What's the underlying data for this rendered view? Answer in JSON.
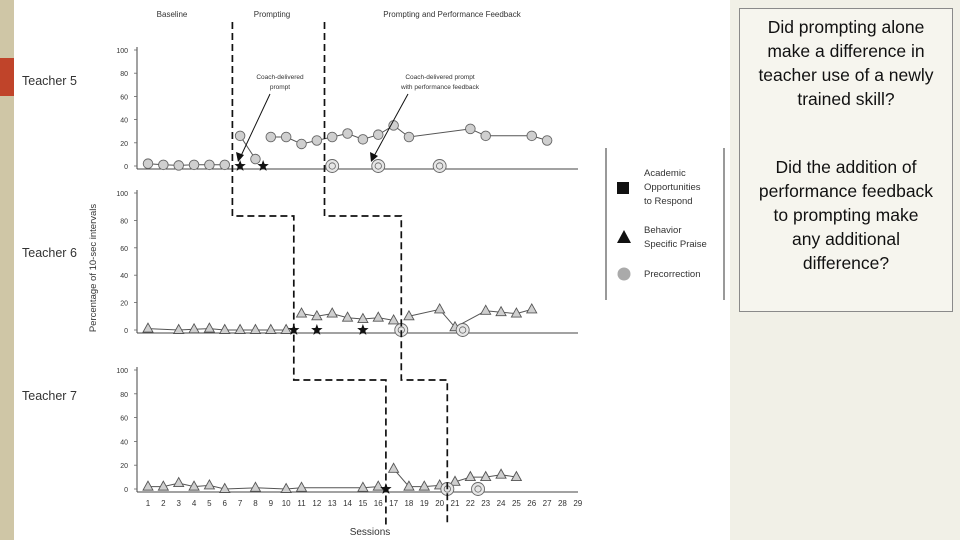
{
  "phases": [
    "Baseline",
    "Prompting",
    "Prompting and Performance Feedback"
  ],
  "annotations": {
    "coach_prompt": [
      "Coach-delivered",
      "prompt"
    ],
    "coach_prompt_feedback": [
      "Coach-delivered prompt",
      "with performance feedback"
    ]
  },
  "legend": {
    "items": [
      {
        "label": [
          "Academic",
          "Opportunities",
          "to Respond"
        ],
        "shape": "square"
      },
      {
        "label": [
          "Behavior",
          "Specific Praise"
        ],
        "shape": "triangle"
      },
      {
        "label": [
          "Precorrection"
        ],
        "shape": "circle"
      }
    ]
  },
  "questions": {
    "q1": [
      "Did prompting alone",
      "make a difference in",
      "teacher use of a newly",
      "trained skill?"
    ],
    "q2": [
      "Did the addition of",
      "performance feedback",
      "to prompting make",
      "any additional",
      "difference?"
    ]
  },
  "chart_data": {
    "type": "line",
    "xlabel": "Sessions",
    "ylabel": "Percentage of 10-sec intervals",
    "x_ticks": [
      "1",
      "2",
      "3",
      "4",
      "5",
      "6",
      "7",
      "8",
      "9",
      "10",
      "11",
      "12",
      "13",
      "14",
      "15",
      "16",
      "17",
      "18",
      "19",
      "20",
      "21",
      "22",
      "23",
      "24",
      "25",
      "26",
      "27",
      "28",
      "29"
    ],
    "panels": [
      {
        "name": "Teacher 5",
        "y_ticks": [
          "100",
          "80",
          "60",
          "40",
          "20",
          "0"
        ],
        "phase_change_1": 6.5,
        "phase_change_2": 12.5,
        "series": [
          {
            "shape": "circle",
            "segments": [
              [
                [
                  1,
                  2
                ],
                [
                  2,
                  1
                ],
                [
                  3,
                  0.5
                ],
                [
                  4,
                  1
                ],
                [
                  5,
                  1
                ],
                [
                  6,
                  1
                ]
              ],
              [
                [
                  7,
                  26
                ],
                [
                  8,
                  6
                ]
              ],
              [
                [
                  9,
                  25
                ],
                [
                  10,
                  25
                ],
                [
                  11,
                  19
                ],
                [
                  12,
                  22
                ],
                [
                  13,
                  25
                ],
                [
                  14,
                  28
                ],
                [
                  15,
                  23
                ],
                [
                  16,
                  27
                ],
                [
                  17,
                  35
                ],
                [
                  18,
                  25
                ],
                [
                  22,
                  32
                ],
                [
                  23,
                  26
                ],
                [
                  26,
                  26
                ],
                [
                  27,
                  22
                ]
              ]
            ]
          },
          {
            "shape": "star",
            "segments": [
              [
                [
                  7,
                  0
                ]
              ],
              [
                [
                  8.5,
                  0
                ]
              ]
            ]
          },
          {
            "shape": "target",
            "segments": [
              [
                [
                  13,
                  0
                ]
              ],
              [
                [
                  16,
                  0
                ]
              ],
              [
                [
                  20,
                  0
                ]
              ]
            ]
          }
        ]
      },
      {
        "name": "Teacher 6",
        "y_ticks": [
          "100",
          "80",
          "60",
          "40",
          "20",
          "0"
        ],
        "phase_change_1": 10.5,
        "phase_change_2": 17.5,
        "series": [
          {
            "shape": "triangle",
            "segments": [
              [
                [
                  1,
                  1
                ],
                [
                  3,
                  0
                ],
                [
                  4,
                  0.5
                ],
                [
                  5,
                  1
                ],
                [
                  6,
                  0
                ],
                [
                  7,
                  0
                ],
                [
                  8,
                  0
                ],
                [
                  9,
                  0
                ],
                [
                  10,
                  0
                ]
              ],
              [
                [
                  11,
                  12
                ],
                [
                  12,
                  10
                ],
                [
                  13,
                  12
                ],
                [
                  14,
                  9
                ],
                [
                  15,
                  8
                ],
                [
                  16,
                  9
                ],
                [
                  17,
                  7
                ]
              ],
              [
                [
                  18,
                  10
                ],
                [
                  20,
                  15
                ],
                [
                  21,
                  2
                ],
                [
                  23,
                  14
                ],
                [
                  24,
                  13
                ],
                [
                  25,
                  12
                ],
                [
                  26,
                  15
                ]
              ]
            ]
          },
          {
            "shape": "star",
            "segments": [
              [
                [
                  10.5,
                  0
                ]
              ],
              [
                [
                  12,
                  0
                ]
              ],
              [
                [
                  15,
                  0
                ]
              ]
            ]
          },
          {
            "shape": "target",
            "segments": [
              [
                [
                  17.5,
                  0
                ]
              ],
              [
                [
                  21.5,
                  0
                ]
              ]
            ]
          }
        ]
      },
      {
        "name": "Teacher 7",
        "y_ticks": [
          "100",
          "80",
          "60",
          "40",
          "20",
          "0"
        ],
        "phase_change_1": 16.5,
        "phase_change_2": 20.5,
        "series": [
          {
            "shape": "triangle",
            "segments": [
              [
                [
                  1,
                  2
                ],
                [
                  2,
                  2
                ],
                [
                  3,
                  5
                ],
                [
                  4,
                  2
                ],
                [
                  5,
                  3
                ],
                [
                  6,
                  0
                ],
                [
                  8,
                  1
                ],
                [
                  10,
                  0
                ],
                [
                  11,
                  1
                ],
                [
                  15,
                  1
                ],
                [
                  16,
                  2
                ]
              ],
              [
                [
                  17,
                  17
                ],
                [
                  18,
                  2
                ],
                [
                  19,
                  2
                ],
                [
                  20,
                  3
                ]
              ],
              [
                [
                  21,
                  6
                ],
                [
                  22,
                  10
                ],
                [
                  23,
                  10
                ],
                [
                  24,
                  12
                ],
                [
                  25,
                  10
                ]
              ]
            ]
          },
          {
            "shape": "star",
            "segments": [
              [
                [
                  16.5,
                  0
                ]
              ]
            ]
          },
          {
            "shape": "target",
            "segments": [
              [
                [
                  20.5,
                  0
                ]
              ],
              [
                [
                  22.5,
                  0
                ]
              ]
            ]
          }
        ]
      }
    ]
  }
}
